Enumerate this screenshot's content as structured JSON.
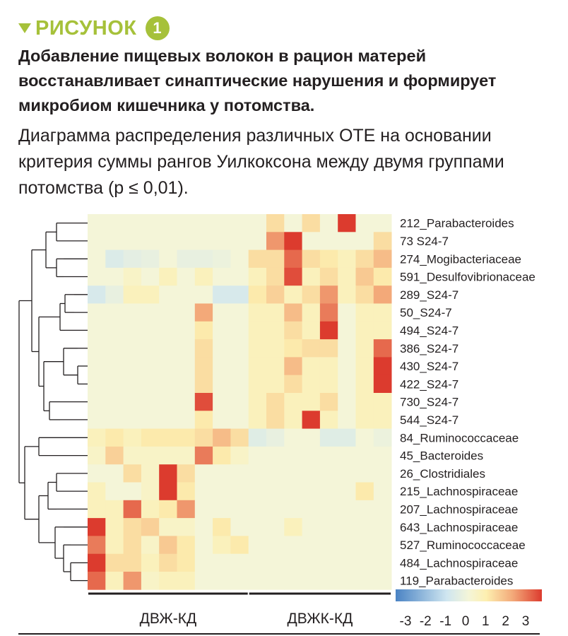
{
  "figure": {
    "label": "РИСУНОК",
    "number": "1",
    "accent_color": "#a6c13a",
    "title_lines": [
      "Добавление пищевых волокон в рацион матерей",
      "восстанавливает синаптические нарушения и формирует",
      "микробиом кишечника у потомства."
    ],
    "subtitle_lines": [
      "Диаграмма распределения различных ОТЕ на основании",
      "критерия суммы рангов Уилкоксона между двумя группами",
      "потомства (p ≤ 0,01)."
    ]
  },
  "chart_data": {
    "type": "heatmap",
    "title": "Диаграмма распределения различных ОТЕ",
    "rows": [
      "212_Parabacteroides",
      "73 S24-7",
      "274_Mogibacteriaceae",
      "591_Desulfovibrionaceae",
      "289_S24-7",
      "50_S24-7",
      "494_S24-7",
      "386_S24-7",
      "430_S24-7",
      "422_S24-7",
      "730_S24-7",
      "544_S24-7",
      "84_Ruminococcaceae",
      "45_Bacteroides",
      "26_Clostridiales",
      "215_Lachnospiraceae",
      "207_Lachnospiraceae",
      "643_Lachnospiraceae",
      "527_Ruminococcaceae",
      "484_Lachnospiraceae",
      "119_Parabacteroides"
    ],
    "groups": [
      {
        "name": "ДВЖ-КД",
        "columns": 9
      },
      {
        "name": "ДВЖК-КД",
        "columns": 8
      }
    ],
    "values": [
      [
        0,
        0,
        0,
        0,
        0,
        0,
        0,
        0,
        0,
        0,
        1,
        0,
        1,
        0,
        3,
        0,
        0
      ],
      [
        0,
        0,
        0,
        0,
        0,
        0,
        0,
        0,
        0,
        0,
        2,
        3,
        0,
        0,
        0,
        0,
        1
      ],
      [
        0,
        -0.6,
        -0.4,
        -0.3,
        0,
        -0.3,
        -0.3,
        -0.2,
        0,
        1,
        1,
        2.5,
        1,
        0.8,
        0.5,
        1,
        1.5
      ],
      [
        0,
        0,
        0.3,
        0,
        0.5,
        0,
        0.5,
        0,
        0,
        0.5,
        1,
        2.8,
        0.5,
        1,
        0.5,
        1.3,
        0.8
      ],
      [
        -0.7,
        -0.3,
        0.5,
        0.5,
        0,
        0,
        0,
        -0.7,
        -0.7,
        0.8,
        1.2,
        0.5,
        1,
        2,
        0.5,
        1,
        1.8
      ],
      [
        0,
        0,
        0,
        0,
        0,
        0,
        1.8,
        0,
        0,
        0.5,
        0.5,
        1.5,
        0.5,
        2.3,
        0,
        0.5,
        0.5
      ],
      [
        0,
        0,
        0,
        0,
        0,
        0,
        0.8,
        0,
        0,
        0.5,
        0.5,
        1,
        0.5,
        3.2,
        0,
        0.5,
        0.5
      ],
      [
        0,
        0,
        0,
        0,
        0,
        0,
        1,
        0,
        0,
        0.5,
        0.5,
        0.8,
        1,
        1,
        0,
        0.5,
        2.5
      ],
      [
        0,
        0,
        0,
        0,
        0,
        0,
        1,
        0,
        0,
        0.5,
        0.5,
        1.5,
        0.5,
        0.5,
        0,
        0.5,
        3
      ],
      [
        0,
        0,
        0,
        0,
        0,
        0,
        1,
        0,
        0,
        0.5,
        0.5,
        1,
        0.5,
        0.5,
        0,
        0.5,
        3.2
      ],
      [
        0,
        0,
        0,
        0,
        0,
        0,
        2.8,
        0,
        0,
        0.5,
        1,
        0.5,
        0.5,
        1,
        0,
        0.5,
        0.5
      ],
      [
        0,
        0,
        0,
        0,
        0,
        0,
        0.8,
        0,
        0,
        0.5,
        1,
        0.5,
        3.3,
        0.5,
        0,
        0.5,
        0.5
      ],
      [
        0.5,
        0.8,
        0.5,
        0.8,
        0.8,
        0.8,
        1,
        1.5,
        1,
        -0.5,
        -0.3,
        0,
        0,
        -0.5,
        -0.5,
        0,
        -0.2
      ],
      [
        0.3,
        1.2,
        0.3,
        0.3,
        0.3,
        0.3,
        2.3,
        0.8,
        0.3,
        0,
        0,
        0,
        0,
        0,
        0,
        0,
        0
      ],
      [
        0,
        0,
        1,
        0.3,
        3.5,
        1,
        0,
        0,
        0,
        0,
        0,
        0,
        0,
        0,
        0,
        0,
        0
      ],
      [
        0.5,
        0,
        0,
        0.3,
        3.5,
        0.8,
        0,
        0,
        0,
        0,
        0,
        0,
        0,
        0,
        0,
        0.8,
        0
      ],
      [
        0.5,
        0.5,
        2.5,
        0.5,
        0.8,
        2,
        0,
        0,
        0,
        0,
        0,
        0,
        0,
        0,
        0,
        0,
        0
      ],
      [
        3,
        0.5,
        1,
        1.2,
        0.3,
        0.3,
        0,
        0.8,
        0,
        0,
        0,
        0.5,
        0,
        0,
        0,
        0,
        0
      ],
      [
        2.3,
        0.5,
        1,
        0.3,
        1.3,
        0.8,
        0,
        0.5,
        0.8,
        0,
        0,
        0,
        0,
        0,
        0,
        0,
        0
      ],
      [
        3.3,
        1,
        1,
        0.5,
        1,
        0.8,
        0,
        0,
        0,
        0,
        0,
        0,
        0,
        0,
        0,
        0,
        0
      ],
      [
        2.5,
        0.5,
        2,
        0.3,
        0.5,
        0.5,
        0,
        0,
        0,
        0,
        0,
        0,
        0,
        0,
        0,
        0,
        0
      ]
    ],
    "color_scale": {
      "min": -3,
      "max": 3,
      "ticks": [
        "-3",
        "-2",
        "-1",
        "0",
        "1",
        "2",
        "3"
      ],
      "stops": [
        "#4a83c4",
        "#cfe6f0",
        "#f4f5d8",
        "#fdefb0",
        "#f3a979",
        "#dc3b2e"
      ]
    },
    "dendrogram": true,
    "xlabel": "",
    "ylabel": ""
  }
}
